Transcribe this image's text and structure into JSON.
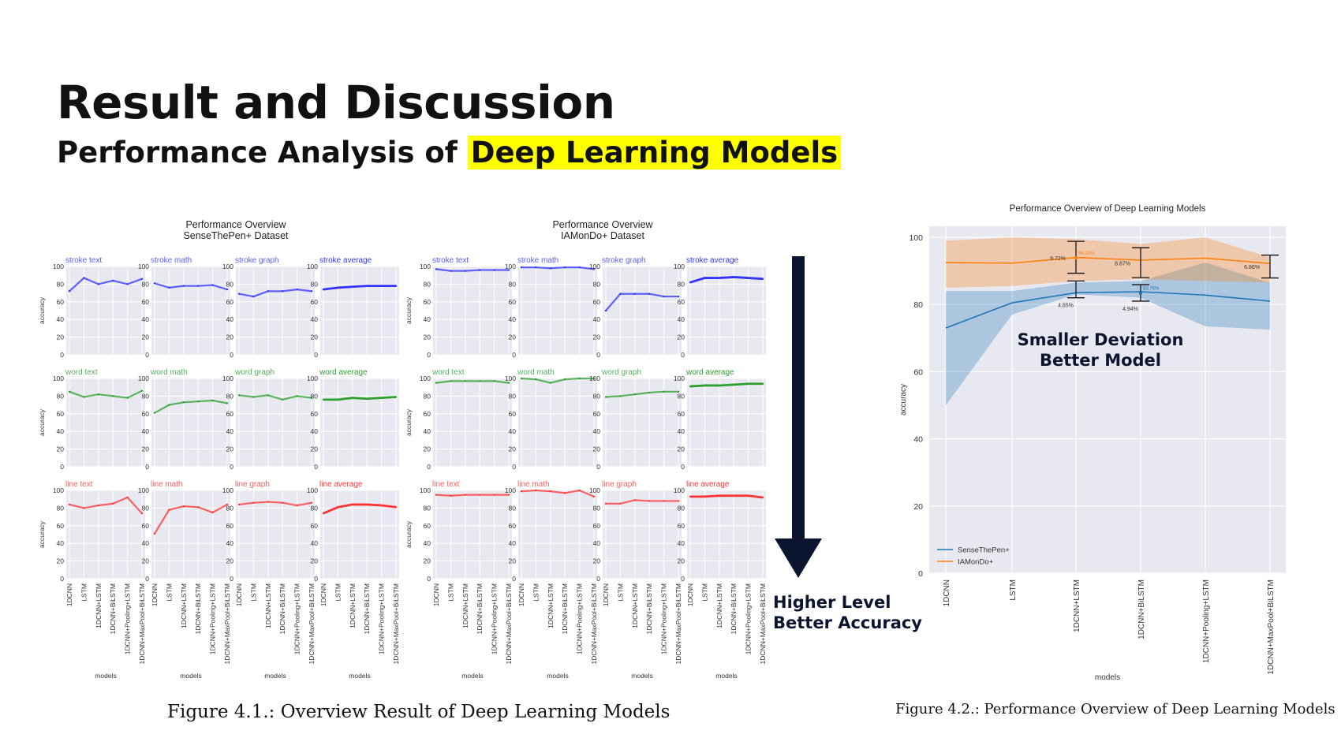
{
  "slide": {
    "title": "Result and Discussion",
    "subtitle_prefix": "Performance Analysis of ",
    "subtitle_highlight": "Deep Learning Models",
    "arrow_note": [
      "Higher Level",
      "Better Accuracy"
    ],
    "deviation_note": [
      "Smaller Deviation",
      "Better Model"
    ],
    "caption_left": "Figure 4.1.: Overview Result of Deep Learning Models",
    "caption_right": "Figure 4.2.: Performance Overview of Deep Learning Models",
    "highlight_color": "#ffff00"
  },
  "chart_data": [
    {
      "type": "line",
      "title": "Performance Overview\nSenseThePen+ Dataset",
      "xlabel": "models",
      "ylabel": "accuracy",
      "ylim": [
        0,
        100
      ],
      "yticks": [
        0,
        20,
        40,
        60,
        80,
        100
      ],
      "categories": [
        "1DCNN",
        "LSTM",
        "1DCNN+LSTM",
        "1DCNN+BiLSTM",
        "1DCNN+Pooling+LSTM",
        "1DCNN+MaxPool+BiLSTM"
      ],
      "grid": true,
      "panels": [
        {
          "name": "stroke text",
          "color": "#3333ff",
          "light": true,
          "values": [
            72,
            87,
            80,
            84,
            80,
            86
          ]
        },
        {
          "name": "stroke math",
          "color": "#3333ff",
          "light": true,
          "values": [
            81,
            76,
            78,
            78,
            79,
            74
          ]
        },
        {
          "name": "stroke graph",
          "color": "#3333ff",
          "light": true,
          "values": [
            69,
            66,
            72,
            72,
            74,
            72
          ]
        },
        {
          "name": "stroke average",
          "color": "#3333ff",
          "light": false,
          "values": [
            74,
            76,
            77,
            78,
            78,
            78
          ]
        },
        {
          "name": "word text",
          "color": "#2ca02c",
          "light": true,
          "values": [
            85,
            79,
            82,
            80,
            78,
            86
          ]
        },
        {
          "name": "word math",
          "color": "#2ca02c",
          "light": true,
          "values": [
            61,
            70,
            73,
            74,
            75,
            72
          ]
        },
        {
          "name": "word graph",
          "color": "#2ca02c",
          "light": true,
          "values": [
            81,
            79,
            81,
            76,
            80,
            78
          ]
        },
        {
          "name": "word average",
          "color": "#2ca02c",
          "light": false,
          "values": [
            76,
            76,
            78,
            77,
            78,
            79
          ]
        },
        {
          "name": "line text",
          "color": "#ff3333",
          "light": true,
          "values": [
            84,
            80,
            83,
            85,
            92,
            74
          ]
        },
        {
          "name": "line math",
          "color": "#ff3333",
          "light": true,
          "values": [
            51,
            78,
            82,
            81,
            75,
            84
          ]
        },
        {
          "name": "line graph",
          "color": "#ff3333",
          "light": true,
          "values": [
            84,
            86,
            87,
            86,
            83,
            86
          ]
        },
        {
          "name": "line average",
          "color": "#ff3333",
          "light": false,
          "values": [
            74,
            81,
            84,
            84,
            83,
            81
          ]
        }
      ]
    },
    {
      "type": "line",
      "title": "Performance Overview\nIAMonDo+ Dataset",
      "xlabel": "models",
      "ylabel": "accuracy",
      "ylim": [
        0,
        100
      ],
      "yticks": [
        0,
        20,
        40,
        60,
        80,
        100
      ],
      "categories": [
        "1DCNN",
        "LSTM",
        "1DCNN+LSTM",
        "1DCNN+BiLSTM",
        "1DCNN+Pooling+LSTM",
        "1DCNN+MaxPool+BiLSTM"
      ],
      "grid": true,
      "panels": [
        {
          "name": "stroke text",
          "color": "#3333ff",
          "light": true,
          "values": [
            97,
            95,
            95,
            96,
            96,
            96
          ]
        },
        {
          "name": "stroke math",
          "color": "#3333ff",
          "light": true,
          "values": [
            99,
            99,
            98,
            99,
            99,
            97
          ]
        },
        {
          "name": "stroke graph",
          "color": "#3333ff",
          "light": true,
          "values": [
            50,
            69,
            69,
            69,
            66,
            66
          ]
        },
        {
          "name": "stroke average",
          "color": "#3333ff",
          "light": false,
          "values": [
            82,
            87,
            87,
            88,
            87,
            86
          ]
        },
        {
          "name": "word text",
          "color": "#2ca02c",
          "light": true,
          "values": [
            95,
            97,
            97,
            97,
            97,
            95
          ]
        },
        {
          "name": "word math",
          "color": "#2ca02c",
          "light": true,
          "values": [
            100,
            99,
            95,
            99,
            100,
            100
          ]
        },
        {
          "name": "word graph",
          "color": "#2ca02c",
          "light": true,
          "values": [
            79,
            80,
            82,
            84,
            85,
            85
          ]
        },
        {
          "name": "word average",
          "color": "#2ca02c",
          "light": false,
          "values": [
            91,
            92,
            92,
            93,
            94,
            94
          ]
        },
        {
          "name": "line text",
          "color": "#ff3333",
          "light": true,
          "values": [
            95,
            94,
            95,
            95,
            95,
            95
          ]
        },
        {
          "name": "line math",
          "color": "#ff3333",
          "light": true,
          "values": [
            99,
            100,
            99,
            97,
            100,
            93
          ]
        },
        {
          "name": "line graph",
          "color": "#ff3333",
          "light": true,
          "values": [
            85,
            85,
            89,
            88,
            88,
            88
          ]
        },
        {
          "name": "line average",
          "color": "#ff3333",
          "light": false,
          "values": [
            93,
            93,
            94,
            94,
            94,
            92
          ]
        }
      ]
    },
    {
      "type": "area",
      "title": "Performance Overview of Deep Learning Models",
      "xlabel": "models",
      "ylabel": "accuracy",
      "ylim": [
        0,
        100
      ],
      "yticks": [
        0,
        20,
        40,
        60,
        80,
        100
      ],
      "categories": [
        "1DCNN",
        "LSTM",
        "1DCNN+LSTM",
        "1DCNN+BiLSTM",
        "1DCNN+Pooling+LSTM",
        "1DCNN+MaxPool+BiLSTM"
      ],
      "legend": "bottom-left",
      "series": [
        {
          "name": "SenseThePen+",
          "color": "#1f77b4",
          "values": [
            73,
            80.5,
            83.5,
            83.8,
            82.8,
            81
          ],
          "band_low": [
            50,
            77,
            83,
            82,
            73.5,
            72.5
          ],
          "band_high": [
            84,
            84,
            86.5,
            87,
            92.5,
            86.5
          ]
        },
        {
          "name": "IAMonDo+",
          "color": "#ff7f0e",
          "values": [
            92.5,
            92.3,
            94,
            93.2,
            93.8,
            92.2
          ],
          "band_low": [
            85,
            85.5,
            87,
            87.5,
            87,
            86.5
          ],
          "band_high": [
            99,
            100,
            99.5,
            98,
            100,
            94
          ]
        }
      ],
      "errorbars": [
        {
          "category": "1DCNN+LSTM",
          "center": 93.9,
          "low": 89.3,
          "high": 98.8,
          "label": "9.72%",
          "peak_label": "94.22%",
          "series": "IAMonDo+"
        },
        {
          "category": "1DCNN+LSTM",
          "center": 84.5,
          "low": 82.0,
          "high": 87.0,
          "label": "4.85%",
          "series": "SenseThePen+"
        },
        {
          "category": "1DCNN+BiLSTM",
          "center": 92.4,
          "low": 88.0,
          "high": 96.9,
          "label": "8.87%",
          "series": "IAMonDo+"
        },
        {
          "category": "1DCNN+BiLSTM",
          "center": 83.4,
          "low": 81.0,
          "high": 85.9,
          "label": "4.94%",
          "peak_label": "83.76%",
          "series": "SenseThePen+"
        },
        {
          "category": "1DCNN+MaxPool+BiLSTM",
          "center": 91.3,
          "low": 87.9,
          "high": 94.7,
          "label": "6.86%",
          "series": "IAMonDo+"
        }
      ]
    }
  ]
}
